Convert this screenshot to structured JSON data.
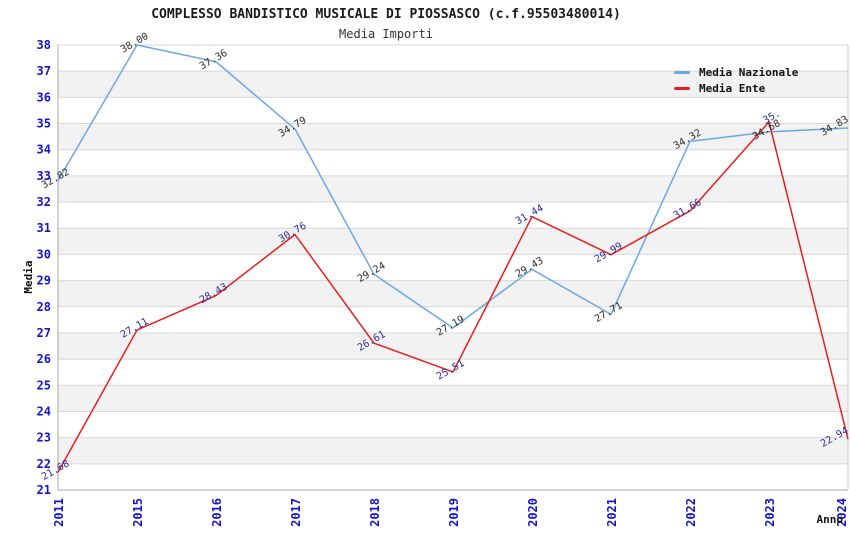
{
  "chart_data": {
    "type": "line",
    "title": "COMPLESSO BANDISTICO MUSICALE DI PIOSSASCO (c.f.95503480014)",
    "subtitle": "Media Importi",
    "xlabel": "Anno",
    "ylabel": "Media",
    "categories": [
      "2011",
      "2015",
      "2016",
      "2017",
      "2018",
      "2019",
      "2020",
      "2021",
      "2022",
      "2023",
      "2024"
    ],
    "ylim": [
      21,
      38
    ],
    "ytick_step": 1,
    "grid": "horizontal gridlines with alternating white/gray bands",
    "legend_position": "top-right inside plot",
    "series": [
      {
        "name": "Media Nazionale",
        "color": "#6BA8E5",
        "label_color": "#2E2E2E",
        "values": [
          32.82,
          38.0,
          37.36,
          34.79,
          29.24,
          27.19,
          29.43,
          27.71,
          34.32,
          34.68,
          34.83
        ],
        "point_labels": [
          "32.82",
          "38.00",
          "37.36",
          "34.79",
          "29.24",
          "27.19",
          "29.43",
          "27.71",
          "34.32",
          "34.68",
          "34.83"
        ]
      },
      {
        "name": "Media Ente",
        "color": "#E81E1E",
        "label_color": "#2B2B9E",
        "values": [
          21.68,
          27.11,
          28.43,
          30.76,
          26.61,
          25.51,
          31.44,
          29.99,
          31.66,
          35.06,
          22.94
        ],
        "point_labels": [
          "21.68",
          "27.11",
          "28.43",
          "30.76",
          "26.61",
          "25.51",
          "31.44",
          "29.99",
          "31.66",
          "35.",
          "22.94"
        ]
      }
    ],
    "style": {
      "tick_label_color": "#1414CE",
      "grid_line_color": "#D8D8D8",
      "band_fill_color": "#F2F2F2",
      "axis_border_color": "#A8A8A8",
      "right_border_color": "#C9C9C9",
      "axis_title_color": "#111111"
    }
  }
}
